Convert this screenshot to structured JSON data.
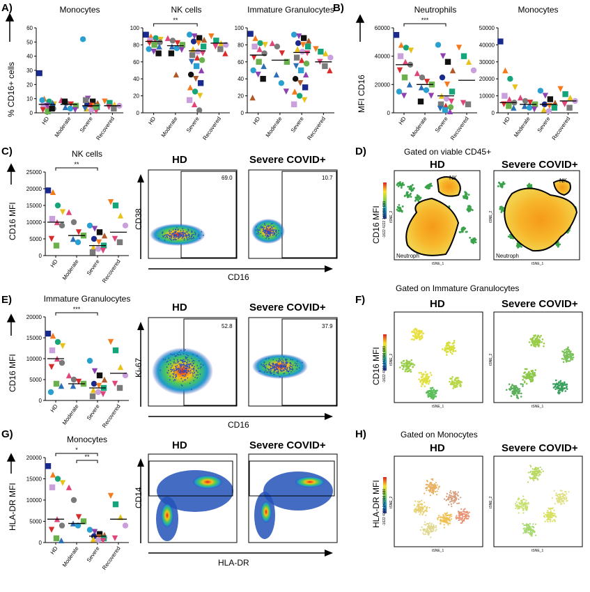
{
  "panels": {
    "A": {
      "label": "A)",
      "ylabel": "% CD16+ cells"
    },
    "B": {
      "label": "B)",
      "ylabel": "MFI CD16"
    },
    "C": {
      "label": "C)",
      "ylabel": "CD16 MFI"
    },
    "D": {
      "label": "D)",
      "title": "Gated on viable CD45+"
    },
    "E": {
      "label": "E)",
      "ylabel": "CD16 MFI"
    },
    "F": {
      "label": "F)",
      "title": "Gated on Immature Granulocytes"
    },
    "G": {
      "label": "G)",
      "ylabel": "HLA-DR MFI"
    },
    "H": {
      "label": "H)",
      "title": "Gated on Monocytes"
    }
  },
  "groups": [
    "HD",
    "Moderate",
    "Severe",
    "Recovered"
  ],
  "flow": {
    "hd": "HD",
    "covid": "Severe COVID+",
    "C": {
      "y": "CD38",
      "x": "CD16",
      "gate_hd": "69.0",
      "gate_covid": "10.7"
    },
    "E": {
      "y": "Ki-67",
      "x": "CD16",
      "gate_hd": "52.8",
      "gate_covid": "37.9"
    },
    "G": {
      "y": "CD14",
      "x": "HLA-DR"
    }
  },
  "tsne": {
    "x": "tSNE_1",
    "y": "tSNE_2",
    "nk": "NK",
    "neutroph": "Neutroph",
    "cd16": "CD16 MFI",
    "hladr": "HLA-DR MFI",
    "scale_D": "-1622 4222 242396 680",
    "scale_F": "-1622 4222 242396 680",
    "scale_H": "-1622 4222 242396 680"
  },
  "chart_data": [
    {
      "id": "A1",
      "type": "scatter",
      "title": "Monocytes",
      "ylim": [
        0,
        60
      ],
      "yticks": [
        0,
        10,
        20,
        30,
        40,
        50,
        60
      ],
      "categories": [
        "HD",
        "Moderate",
        "Severe",
        "Recovered"
      ],
      "sig": [],
      "series": [
        {
          "values": [
            [
              28,
              10,
              8,
              6,
              5,
              4,
              3,
              2,
              1,
              7,
              9,
              5,
              3
            ],
            [
              9,
              7,
              6,
              5,
              4,
              3,
              2,
              8
            ],
            [
              52,
              10,
              8,
              7,
              6,
              5,
              4,
              3,
              2,
              1,
              9,
              6,
              4,
              3
            ],
            [
              8,
              7,
              6,
              5,
              4,
              3
            ]
          ]
        }
      ],
      "means": [
        6,
        6,
        5,
        5
      ]
    },
    {
      "id": "A2",
      "type": "scatter",
      "title": "NK cells",
      "ylim": [
        0,
        100
      ],
      "yticks": [
        0,
        20,
        40,
        60,
        80,
        100
      ],
      "categories": [
        "HD",
        "Moderate",
        "Severe",
        "Recovered"
      ],
      "sig": [
        {
          "from": 0,
          "to": 2,
          "label": "**"
        }
      ],
      "series": [
        {
          "values": [
            [
              92,
              90,
              88,
              86,
              85,
              84,
              83,
              82,
              80,
              78,
              75,
              72,
              70
            ],
            [
              88,
              85,
              82,
              80,
              78,
              76,
              74,
              70,
              45
            ],
            [
              92,
              90,
              88,
              86,
              84,
              82,
              78,
              75,
              72,
              70,
              68,
              65,
              62,
              60,
              55,
              50,
              45,
              40,
              35,
              30,
              25,
              20,
              15,
              10,
              3
            ],
            [
              90,
              85,
              82,
              80,
              78,
              75,
              70
            ]
          ]
        }
      ],
      "means": [
        84,
        79,
        73,
        82
      ]
    },
    {
      "id": "A3",
      "type": "scatter",
      "title": "Immature Granulocytes",
      "ylim": [
        0,
        100
      ],
      "yticks": [
        0,
        20,
        40,
        60,
        80,
        100
      ],
      "categories": [
        "HD",
        "Moderate",
        "Severe",
        "Recovered"
      ],
      "sig": [],
      "series": [
        {
          "values": [
            [
              93,
              88,
              82,
              80,
              78,
              75,
              70,
              65,
              60,
              55,
              50,
              45,
              40,
              18
            ],
            [
              82,
              78,
              70,
              60,
              45,
              35,
              25
            ],
            [
              92,
              90,
              88,
              85,
              82,
              80,
              78,
              75,
              72,
              70,
              65,
              62,
              58,
              55,
              50,
              45,
              40,
              35,
              30,
              25,
              20,
              15,
              10
            ],
            [
              75,
              72,
              70,
              65,
              60,
              55,
              50
            ]
          ]
        }
      ],
      "means": [
        68,
        62,
        71,
        60
      ]
    },
    {
      "id": "B1",
      "type": "scatter",
      "title": "Neutrophils",
      "ylim": [
        0,
        60000
      ],
      "yticks": [
        0,
        20000,
        40000,
        60000
      ],
      "categories": [
        "HD",
        "Moderate",
        "Severe",
        "Recovered"
      ],
      "sig": [
        {
          "from": 0,
          "to": 2,
          "label": "***"
        }
      ],
      "series": [
        {
          "values": [
            [
              55000,
              48000,
              46000,
              44000,
              40000,
              36000,
              34000,
              30000,
              25000,
              20000,
              15000,
              12000
            ],
            [
              28000,
              25000,
              22000,
              20000,
              18000,
              16000,
              12000,
              8000
            ],
            [
              48000,
              40000,
              36000,
              30000,
              25000,
              20000,
              15000,
              12000,
              10000,
              8000,
              6000,
              5000,
              4000,
              3000,
              2000,
              1000
            ],
            [
              46000,
              40000,
              36000,
              30000,
              7000,
              6000
            ]
          ]
        }
      ],
      "means": [
        34000,
        20000,
        12000,
        23000
      ]
    },
    {
      "id": "B2",
      "type": "scatter",
      "title": "Monocytes",
      "ylim": [
        0,
        50000
      ],
      "yticks": [
        0,
        10000,
        20000,
        30000,
        40000,
        50000
      ],
      "categories": [
        "HD",
        "Moderate",
        "Severe",
        "Recovered"
      ],
      "sig": [],
      "series": [
        {
          "values": [
            [
              42000,
              25000,
              20000,
              15000,
              10000,
              8000,
              6000,
              5000,
              4000,
              3000
            ],
            [
              9000,
              7000,
              6000,
              5000,
              4000,
              3000,
              2000
            ],
            [
              13000,
              10000,
              8000,
              6000,
              5000,
              4000,
              3000,
              2000,
              1000
            ],
            [
              14000,
              11000,
              9000,
              7000,
              5000,
              3000
            ]
          ]
        }
      ],
      "means": [
        6000,
        5000,
        5000,
        7000
      ]
    },
    {
      "id": "C",
      "type": "scatter",
      "title": "NK cells",
      "ylim": [
        0,
        25000
      ],
      "yticks": [
        0,
        5000,
        10000,
        15000,
        20000,
        25000
      ],
      "categories": [
        "HD",
        "Moderate",
        "Severe",
        "Recovered"
      ],
      "sig": [
        {
          "from": 0,
          "to": 2,
          "label": "**"
        }
      ],
      "series": [
        {
          "values": [
            [
              19500,
              19000,
              15000,
              13000,
              11000,
              10000,
              9000,
              5000,
              3000
            ],
            [
              13000,
              10000,
              7000,
              6000,
              5000,
              4000
            ],
            [
              9000,
              8000,
              7000,
              6000,
              5000,
              4000,
              3000,
              2500,
              2000,
              1500,
              1000
            ],
            [
              16000,
              15000,
              12000,
              9000,
              5000,
              4000
            ]
          ]
        }
      ],
      "means": [
        10000,
        6000,
        3000,
        7000
      ]
    },
    {
      "id": "E",
      "type": "scatter",
      "title": "Immature Granulocytes",
      "ylim": [
        0,
        20000
      ],
      "yticks": [
        0,
        5000,
        10000,
        15000,
        20000
      ],
      "categories": [
        "HD",
        "Moderate",
        "Severe",
        "Recovered"
      ],
      "sig": [
        {
          "from": 0,
          "to": 2,
          "label": "***"
        }
      ],
      "series": [
        {
          "values": [
            [
              16000,
              15500,
              14000,
              13000,
              12000,
              10000,
              9000,
              8000,
              4000,
              3500,
              2000
            ],
            [
              6000,
              5000,
              4500,
              4000,
              3500
            ],
            [
              9500,
              7000,
              6000,
              5000,
              4000,
              3500,
              3000,
              2500,
              2000,
              1500,
              1000
            ],
            [
              14000,
              12000,
              8000,
              6000,
              4000,
              3000
            ]
          ]
        }
      ],
      "means": [
        10000,
        4000,
        3000,
        6500
      ]
    },
    {
      "id": "G",
      "type": "scatter",
      "title": "Monocytes",
      "ylim": [
        0,
        20000
      ],
      "yticks": [
        0,
        5000,
        10000,
        15000,
        20000
      ],
      "categories": [
        "HD",
        "Moderate",
        "Severe",
        "Recovered"
      ],
      "sig": [
        {
          "from": 0,
          "to": 2,
          "label": "*"
        },
        {
          "from": 1,
          "to": 2,
          "label": "**"
        }
      ],
      "series": [
        {
          "values": [
            [
              18000,
              16000,
              15000,
              14000,
              13000,
              5500,
              4000,
              3000,
              1000,
              500
            ],
            [
              13000,
              10000,
              6000,
              5000,
              4500,
              4000
            ],
            [
              3000,
              2500,
              2000,
              1800,
              1500,
              1200,
              1000,
              800,
              600,
              400
            ],
            [
              11000,
              9000,
              6000,
              4000,
              1000
            ]
          ]
        }
      ],
      "means": [
        5500,
        4500,
        1500,
        5500
      ]
    }
  ]
}
